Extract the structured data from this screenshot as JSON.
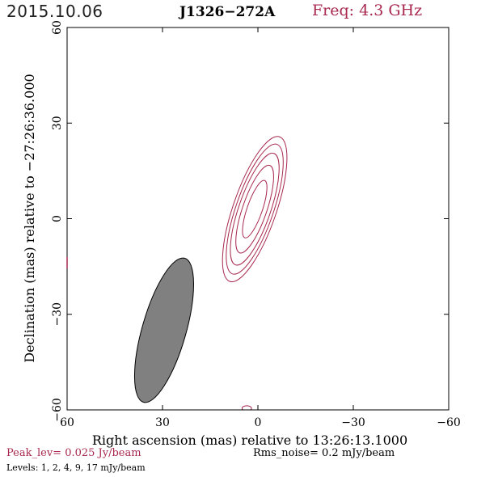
{
  "header": {
    "date": "2015.10.06",
    "source": "J1326−272A",
    "frequency": "Freq: 4.3 GHz"
  },
  "footer": {
    "peak": "Peak_lev=  0.025 Jy/beam",
    "rms": "Rms_noise=  0.2 mJy/beam",
    "levels": "Levels:   1,   2,   4,   9,  17 mJy/beam"
  },
  "colors": {
    "contour": "#a8284f",
    "beam_fill": "#808080",
    "axes": "#000000"
  },
  "chart_data": {
    "type": "contour",
    "xlabel": "Right ascension (mas) relative to 13:26:13.1000",
    "ylabel": "Declination (mas) relative to −27:26:36.000",
    "xlim": [
      60,
      -60
    ],
    "ylim": [
      -60,
      60
    ],
    "xticks": [
      60,
      30,
      0,
      -30,
      -60
    ],
    "yticks": [
      -60,
      -30,
      0,
      30,
      60
    ],
    "xtick_labels": [
      "60",
      "30",
      "0",
      "−30",
      "−60"
    ],
    "ytick_labels": [
      "−60",
      "−30",
      "0",
      "30",
      "60"
    ],
    "contour_levels_mJy": [
      1,
      2,
      4,
      9,
      17
    ],
    "center_mas": [
      1.0,
      3.0
    ],
    "position_angle_deg": 19,
    "contour_semi_axes_mas": [
      {
        "level": 1,
        "major": 24.0,
        "minor": 6.8
      },
      {
        "level": 2,
        "major": 21.5,
        "minor": 5.9
      },
      {
        "level": 4,
        "major": 18.5,
        "minor": 5.0
      },
      {
        "level": 9,
        "major": 14.5,
        "minor": 3.8
      },
      {
        "level": 17,
        "major": 9.5,
        "minor": 2.4
      }
    ],
    "beam": {
      "center_mas": [
        29.5,
        -35.0
      ],
      "major_mas": 23.5,
      "minor_mas": 6.9,
      "position_angle_deg": 16
    },
    "features": [
      {
        "name": "edge-blob",
        "center_mas": [
          3.5,
          -59.5
        ],
        "semi_mas": [
          1.5,
          0.8
        ]
      }
    ]
  }
}
